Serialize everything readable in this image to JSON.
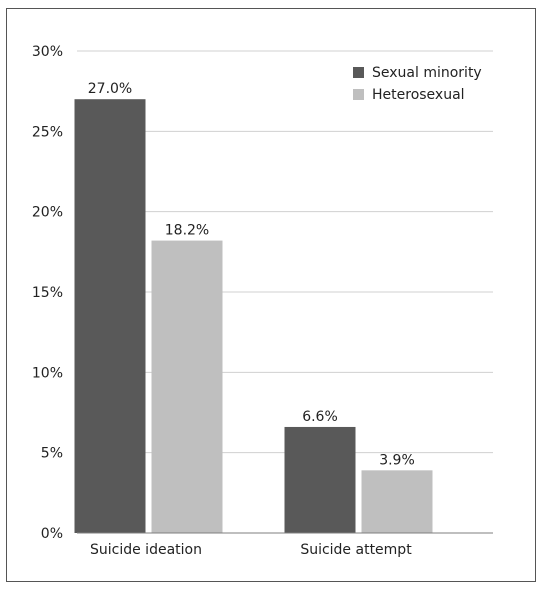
{
  "chart_data": {
    "type": "bar",
    "categories": [
      "Suicide ideation",
      "Suicide attempt"
    ],
    "series": [
      {
        "name": "Sexual minority",
        "values": [
          27.0,
          6.6
        ],
        "labels": [
          "27.0%",
          "6.6%"
        ],
        "color": "#595959"
      },
      {
        "name": "Heterosexual",
        "values": [
          18.2,
          3.9
        ],
        "labels": [
          "18.2%",
          "3.9%"
        ],
        "color": "#bfbfbf"
      }
    ],
    "ylim": [
      0,
      30
    ],
    "yticks": [
      0,
      5,
      10,
      15,
      20,
      25,
      30
    ],
    "ytick_labels": [
      "0%",
      "5%",
      "10%",
      "15%",
      "20%",
      "25%",
      "30%"
    ],
    "grid": true,
    "grid_color": "#d0d0d0",
    "axis_color": "#7f7f7f",
    "legend_position": "top-right",
    "title": "",
    "xlabel": "",
    "ylabel": ""
  }
}
